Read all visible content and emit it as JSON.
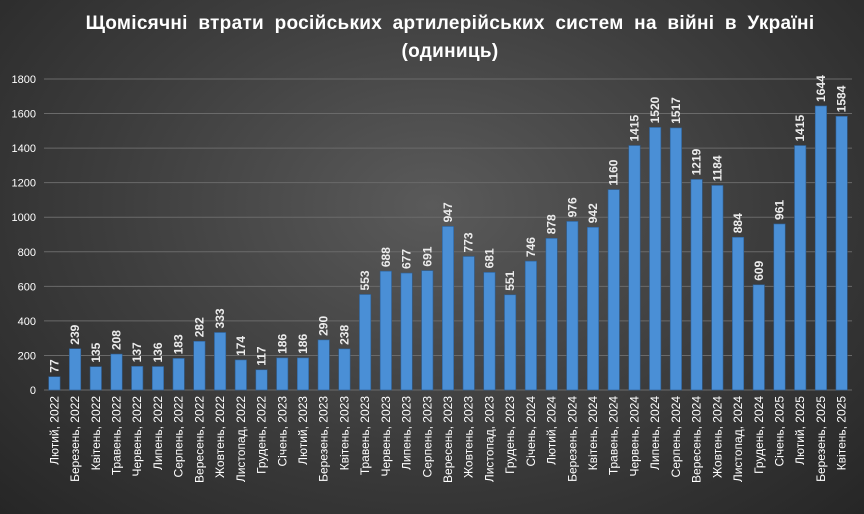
{
  "chart_data": {
    "type": "bar",
    "title": "Щомісячні втрати російських артилерійських систем на війні в Україні (одиниць)",
    "xlabel": "",
    "ylabel": "",
    "ylim": [
      0,
      1800
    ],
    "yticks": [
      0,
      200,
      400,
      600,
      800,
      1000,
      1200,
      1400,
      1600,
      1800
    ],
    "grid": true,
    "bar_color": "#4a8fd6",
    "categories": [
      "Лютий, 2022",
      "Березень, 2022",
      "Квітень, 2022",
      "Травень, 2022",
      "Червень, 2022",
      "Липень, 2022",
      "Серпень, 2022",
      "Вересень, 2022",
      "Жовтень, 2022",
      "Листопад, 2022",
      "Грудень, 2022",
      "Січень, 2023",
      "Лютий, 2023",
      "Березень, 2023",
      "Квітень, 2023",
      "Травень, 2023",
      "Червень, 2023",
      "Липень, 2023",
      "Серпень, 2023",
      "Вересень, 2023",
      "Жовтень, 2023",
      "Листопад, 2023",
      "Грудень, 2023",
      "Січень, 2024",
      "Лютий, 2024",
      "Березень, 2024",
      "Квітень, 2024",
      "Травень, 2024",
      "Червень, 2024",
      "Липень, 2024",
      "Серпень, 2024",
      "Вересень, 2024",
      "Жовтень, 2024",
      "Листопад, 2024",
      "Грудень, 2024",
      "Січень, 2025",
      "Лютий, 2025",
      "Березень, 2025",
      "Квітень, 2025"
    ],
    "values": [
      77,
      239,
      135,
      208,
      137,
      136,
      183,
      282,
      333,
      174,
      117,
      186,
      186,
      290,
      238,
      553,
      688,
      677,
      691,
      947,
      773,
      681,
      551,
      746,
      878,
      976,
      942,
      1160,
      1415,
      1520,
      1517,
      1219,
      1184,
      884,
      609,
      961,
      1415,
      1644,
      1584
    ]
  }
}
